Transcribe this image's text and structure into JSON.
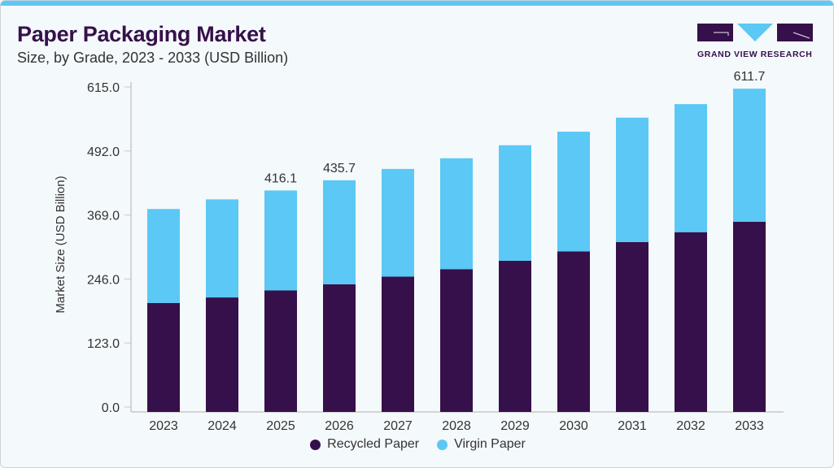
{
  "header": {
    "title": "Paper Packaging Market",
    "subtitle": "Size, by Grade, 2023 - 2033 (USD Billion)"
  },
  "logo": {
    "text": "GRAND VIEW RESEARCH"
  },
  "colors": {
    "accent_bar": "#5bc8f5",
    "recycled": "#36104a",
    "virgin": "#5bc8f5",
    "title": "#36104a"
  },
  "chart_data": {
    "type": "bar",
    "stacked": true,
    "title": "Paper Packaging Market",
    "subtitle": "Size, by Grade, 2023 - 2033 (USD Billion)",
    "xlabel": "",
    "ylabel": "Market Size (USD Billion)",
    "ylim": [
      0,
      615
    ],
    "yticks": [
      "0.0",
      "123.0",
      "246.0",
      "369.0",
      "492.0",
      "615.0"
    ],
    "grid": false,
    "legend_position": "bottom",
    "categories": [
      "2023",
      "2024",
      "2025",
      "2026",
      "2027",
      "2028",
      "2029",
      "2030",
      "2031",
      "2032",
      "2033"
    ],
    "series": [
      {
        "name": "Recycled Paper",
        "color": "#36104a",
        "values": [
          200,
          210.6,
          224,
          236,
          250.5,
          265,
          281,
          299,
          317,
          336,
          356
        ]
      },
      {
        "name": "Virgin Paper",
        "color": "#5bc8f5",
        "values": [
          180.5,
          188.4,
          192.1,
          199.7,
          207,
          213,
          222,
          230,
          239,
          246,
          255.7
        ]
      }
    ],
    "data_labels": [
      {
        "category": "2025",
        "text": "416.1"
      },
      {
        "category": "2026",
        "text": "435.7"
      },
      {
        "category": "2033",
        "text": "611.7"
      }
    ]
  }
}
